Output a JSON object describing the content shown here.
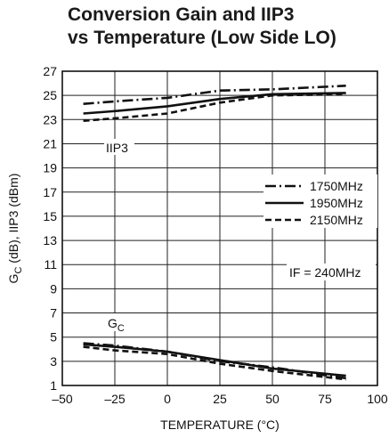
{
  "title_line1": "Conversion Gain and IIP3",
  "title_line2": "vs Temperature (Low Side LO)",
  "chart_data": {
    "type": "line",
    "title": "Conversion Gain and IIP3 vs Temperature (Low Side LO)",
    "xlabel": "TEMPERATURE (°C)",
    "ylabel_main": "G",
    "ylabel_sub": "C",
    "ylabel_rest": " (dB), IIP3 (dBm)",
    "xlim": [
      -50,
      100
    ],
    "ylim": [
      1,
      27
    ],
    "xticks": [
      -50,
      -25,
      0,
      25,
      50,
      75,
      100
    ],
    "xtick_labels": [
      "–50",
      "–25",
      "0",
      "25",
      "50",
      "75",
      "100"
    ],
    "yticks": [
      1,
      3,
      5,
      7,
      9,
      11,
      13,
      15,
      17,
      19,
      21,
      23,
      25,
      27
    ],
    "grid": true,
    "legend_position": "right",
    "legend": [
      "1750MHz",
      "1950MHz",
      "2150MHz"
    ],
    "annotations": {
      "iip3_label": "IIP3",
      "gc_label_main": "G",
      "gc_label_sub": "C",
      "if_label": "IF = 240MHz"
    },
    "series": [
      {
        "name": "1750MHz",
        "group": "IIP3",
        "style": "dashdot",
        "x": [
          -40,
          -25,
          0,
          25,
          50,
          85
        ],
        "y": [
          24.3,
          24.5,
          24.8,
          25.4,
          25.5,
          25.8
        ]
      },
      {
        "name": "1950MHz",
        "group": "IIP3",
        "style": "solid",
        "x": [
          -40,
          -25,
          0,
          25,
          50,
          85
        ],
        "y": [
          23.5,
          23.7,
          24.1,
          24.7,
          25.1,
          25.2
        ]
      },
      {
        "name": "2150MHz",
        "group": "IIP3",
        "style": "dashed",
        "x": [
          -40,
          -25,
          0,
          25,
          50,
          85
        ],
        "y": [
          22.9,
          23.1,
          23.5,
          24.4,
          25.0,
          25.1
        ]
      },
      {
        "name": "1750MHz",
        "group": "GC",
        "style": "dashdot",
        "x": [
          -40,
          -25,
          0,
          25,
          50,
          85
        ],
        "y": [
          4.5,
          4.3,
          3.8,
          3.0,
          2.5,
          1.6
        ]
      },
      {
        "name": "1950MHz",
        "group": "GC",
        "style": "solid",
        "x": [
          -40,
          -25,
          0,
          25,
          50,
          85
        ],
        "y": [
          4.4,
          4.2,
          3.8,
          3.1,
          2.4,
          1.8
        ]
      },
      {
        "name": "2150MHz",
        "group": "GC",
        "style": "dashed",
        "x": [
          -40,
          -25,
          0,
          25,
          50,
          85
        ],
        "y": [
          4.2,
          3.9,
          3.6,
          2.8,
          2.2,
          1.5
        ]
      }
    ]
  }
}
